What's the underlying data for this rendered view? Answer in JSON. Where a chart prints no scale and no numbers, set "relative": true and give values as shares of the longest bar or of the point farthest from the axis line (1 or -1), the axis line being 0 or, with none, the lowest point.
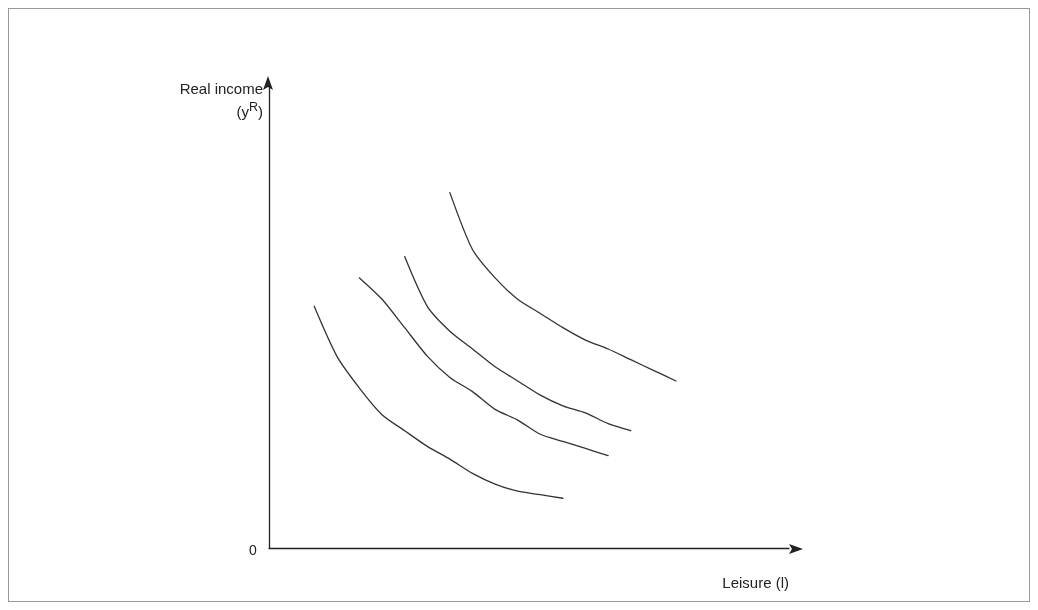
{
  "chart_data": {
    "type": "line",
    "relative": true,
    "ylabel": "Real income (y$^{R}$)",
    "xlabel": "Leisure (l)",
    "annotations": [
      "0"
    ],
    "marker": "none",
    "line_style": "solid",
    "categories": [
      null,
      null,
      null,
      null,
      null,
      null,
      null,
      null,
      null,
      null,
      null,
      null,
      null,
      null,
      null,
      null,
      null,
      null,
      null,
      null,
      null,
      null,
      null,
      null
    ],
    "series": [
      {
        "color": "#333333",
        "values": [
          null,
          null,
          0.68,
          0.54,
          0.45,
          0.375,
          0.33,
          0.286,
          0.25,
          0.21,
          0.18,
          0.16,
          0.15,
          0.14,
          null,
          null,
          null,
          null,
          null,
          null,
          null,
          null,
          null,
          null
        ]
      },
      {
        "color": "#333333",
        "values": [
          null,
          null,
          null,
          null,
          0.76,
          0.7,
          0.62,
          0.54,
          0.48,
          0.44,
          0.39,
          0.36,
          0.32,
          0.3,
          0.28,
          0.26,
          null,
          null,
          null,
          null,
          null,
          null,
          null,
          null
        ]
      },
      {
        "color": "#333333",
        "values": [
          null,
          null,
          null,
          null,
          null,
          null,
          0.82,
          0.68,
          0.61,
          0.56,
          0.51,
          0.47,
          0.43,
          0.4,
          0.38,
          0.35,
          0.33,
          null,
          null,
          null,
          null,
          null,
          null,
          null
        ]
      },
      {
        "color": "#333333",
        "values": [
          null,
          null,
          null,
          null,
          null,
          null,
          null,
          null,
          1,
          0.84,
          0.76,
          0.7,
          0.66,
          0.62,
          0.585,
          0.56,
          0.53,
          0.5,
          0.47,
          null,
          null,
          null,
          null,
          null
        ]
      }
    ]
  }
}
